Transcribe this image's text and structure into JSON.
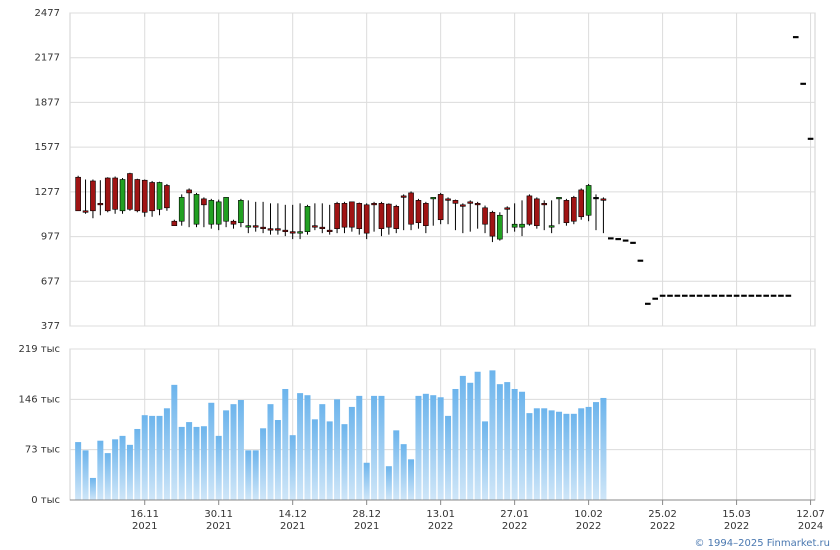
{
  "chart_data": [
    {
      "type": "candlestick",
      "xlim": [
        -1.1,
        99.6
      ],
      "ylim": [
        377,
        2477
      ],
      "yticks": [
        377,
        677,
        977,
        1277,
        1577,
        1877,
        2177,
        2477
      ],
      "grid": true,
      "up_color": "#22a022",
      "down_color": "#a01414",
      "ohlc": [
        [
          1375,
          1385,
          1150,
          1150
        ],
        [
          1150,
          1360,
          1130,
          1140
        ],
        [
          1350,
          1360,
          1100,
          1150
        ],
        [
          1200,
          1355,
          1120,
          1195
        ],
        [
          1370,
          1375,
          1140,
          1150
        ],
        [
          1370,
          1380,
          1130,
          1160
        ],
        [
          1150,
          1370,
          1130,
          1360
        ],
        [
          1400,
          1405,
          1150,
          1160
        ],
        [
          1360,
          1365,
          1140,
          1150
        ],
        [
          1355,
          1360,
          1110,
          1140
        ],
        [
          1340,
          1350,
          1110,
          1150
        ],
        [
          1160,
          1345,
          1120,
          1340
        ],
        [
          1320,
          1330,
          1150,
          1170
        ],
        [
          1080,
          1090,
          1050,
          1050
        ],
        [
          1080,
          1260,
          1050,
          1240
        ],
        [
          1290,
          1300,
          1040,
          1270
        ],
        [
          1060,
          1270,
          1040,
          1260
        ],
        [
          1230,
          1240,
          1040,
          1190
        ],
        [
          1060,
          1230,
          1030,
          1220
        ],
        [
          1060,
          1225,
          1020,
          1210
        ],
        [
          1080,
          1240,
          1040,
          1240
        ],
        [
          1080,
          1090,
          1030,
          1060
        ],
        [
          1070,
          1230,
          1040,
          1220
        ],
        [
          1040,
          1220,
          1000,
          1050
        ],
        [
          1050,
          1210,
          1010,
          1040
        ],
        [
          1040,
          1210,
          1000,
          1030
        ],
        [
          1030,
          1200,
          990,
          1020
        ],
        [
          1030,
          1200,
          990,
          1020
        ],
        [
          1020,
          1190,
          980,
          1010
        ],
        [
          1010,
          1190,
          960,
          1000
        ],
        [
          1000,
          1200,
          960,
          1010
        ],
        [
          1010,
          1190,
          990,
          1180
        ],
        [
          1050,
          1200,
          1020,
          1040
        ],
        [
          1040,
          1200,
          1000,
          1030
        ],
        [
          1020,
          1190,
          990,
          1010
        ],
        [
          1200,
          1210,
          1000,
          1030
        ],
        [
          1200,
          1210,
          1000,
          1040
        ],
        [
          1210,
          1210,
          1010,
          1040
        ],
        [
          1200,
          1205,
          990,
          1030
        ],
        [
          1190,
          1200,
          960,
          1000
        ],
        [
          1200,
          1210,
          1010,
          1190
        ],
        [
          1200,
          1210,
          980,
          1030
        ],
        [
          1195,
          1200,
          990,
          1040
        ],
        [
          1180,
          1190,
          1000,
          1030
        ],
        [
          1250,
          1260,
          1020,
          1240
        ],
        [
          1270,
          1280,
          1020,
          1060
        ],
        [
          1220,
          1230,
          1030,
          1070
        ],
        [
          1200,
          1210,
          1000,
          1050
        ],
        [
          1230,
          1235,
          1050,
          1240
        ],
        [
          1260,
          1270,
          1060,
          1090
        ],
        [
          1230,
          1240,
          1060,
          1225
        ],
        [
          1220,
          1225,
          1020,
          1200
        ],
        [
          1190,
          1200,
          1000,
          1180
        ],
        [
          1210,
          1220,
          1010,
          1200
        ],
        [
          1200,
          1210,
          1030,
          1190
        ],
        [
          1170,
          1185,
          1000,
          1060
        ],
        [
          1140,
          1150,
          940,
          980
        ],
        [
          960,
          1140,
          950,
          1120
        ],
        [
          1170,
          1180,
          1000,
          1160
        ],
        [
          1040,
          1200,
          1010,
          1060
        ],
        [
          1040,
          1220,
          980,
          1060
        ],
        [
          1250,
          1260,
          1050,
          1060
        ],
        [
          1230,
          1240,
          1030,
          1050
        ],
        [
          1200,
          1220,
          1020,
          1190
        ],
        [
          1040,
          1220,
          1000,
          1050
        ],
        [
          1230,
          1240,
          1060,
          1240
        ],
        [
          1220,
          1230,
          1050,
          1070
        ],
        [
          1240,
          1250,
          1060,
          1080
        ],
        [
          1290,
          1300,
          1090,
          1110
        ],
        [
          1120,
          1330,
          1080,
          1320
        ],
        [
          1240,
          1260,
          1020,
          1240
        ],
        [
          1230,
          1240,
          1000,
          1220
        ],
        [
          970,
          970,
          970,
          970
        ],
        [
          965,
          965,
          965,
          965
        ],
        [
          955,
          955,
          955,
          955
        ],
        [
          940,
          940,
          940,
          940
        ],
        [
          820,
          820,
          820,
          820
        ],
        [
          531,
          531,
          531,
          531
        ],
        [
          565,
          565,
          565,
          565
        ],
        [
          585,
          585,
          585,
          585
        ],
        [
          585,
          585,
          585,
          585
        ],
        [
          585,
          585,
          585,
          585
        ],
        [
          585,
          585,
          585,
          585
        ],
        [
          585,
          585,
          585,
          585
        ],
        [
          585,
          585,
          585,
          585
        ],
        [
          585,
          585,
          585,
          585
        ],
        [
          585,
          585,
          585,
          585
        ],
        [
          585,
          585,
          585,
          585
        ],
        [
          585,
          585,
          585,
          585
        ],
        [
          585,
          585,
          585,
          585
        ],
        [
          585,
          585,
          585,
          585
        ],
        [
          585,
          585,
          585,
          585
        ],
        [
          585,
          585,
          585,
          585
        ],
        [
          585,
          585,
          585,
          585
        ],
        [
          585,
          585,
          585,
          585
        ],
        [
          585,
          585,
          585,
          585
        ],
        [
          585,
          585,
          585,
          585
        ],
        [
          2320,
          2320,
          2320,
          2320
        ],
        [
          2007,
          2007,
          2007,
          2007
        ],
        [
          1638,
          1638,
          1638,
          1638
        ]
      ]
    },
    {
      "type": "bar",
      "xlim": [
        -1.1,
        99.6
      ],
      "ylim": [
        0,
        219
      ],
      "grid": true,
      "color": "#6cb4ec",
      "yticks": [
        {
          "value": 0,
          "label": "0 тыс"
        },
        {
          "value": 73,
          "label": "73 тыс"
        },
        {
          "value": 146,
          "label": "146 тыс"
        },
        {
          "value": 219,
          "label": "219 тыс"
        }
      ],
      "xticks": [
        {
          "value": 9,
          "label": [
            "16.11",
            "2021"
          ]
        },
        {
          "value": 19,
          "label": [
            "30.11",
            "2021"
          ]
        },
        {
          "value": 29,
          "label": [
            "14.12",
            "2021"
          ]
        },
        {
          "value": 39,
          "label": [
            "28.12",
            "2021"
          ]
        },
        {
          "value": 49,
          "label": [
            "13.01",
            "2022"
          ]
        },
        {
          "value": 59,
          "label": [
            "27.01",
            "2022"
          ]
        },
        {
          "value": 69,
          "label": [
            "10.02",
            "2022"
          ]
        },
        {
          "value": 79,
          "label": [
            "25.02",
            "2022"
          ]
        },
        {
          "value": 89,
          "label": [
            "15.03",
            "2022"
          ]
        },
        {
          "value": 99,
          "label": [
            "12.07",
            "2024"
          ]
        }
      ],
      "values": [
        84,
        72,
        32,
        86,
        68,
        88,
        93,
        80,
        103,
        123,
        122,
        122,
        133,
        167,
        106,
        113,
        106,
        107,
        141,
        93,
        130,
        139,
        145,
        72,
        72,
        104,
        139,
        116,
        161,
        94,
        155,
        152,
        117,
        139,
        114,
        146,
        110,
        135,
        151,
        54,
        151,
        151,
        49,
        101,
        81,
        59,
        151,
        154,
        152,
        149,
        122,
        161,
        180,
        170,
        186,
        114,
        188,
        168,
        171,
        161,
        157,
        126,
        133,
        133,
        130,
        128,
        125,
        125,
        133,
        135,
        142,
        148,
        0,
        0,
        0,
        0,
        0,
        0,
        0,
        0,
        0,
        0,
        0,
        0,
        0,
        0,
        0,
        0,
        0,
        0,
        0,
        0,
        0,
        0,
        0,
        0,
        0,
        0,
        0,
        0
      ]
    }
  ],
  "footer": "© 1994–2025 Finmarket.ru"
}
